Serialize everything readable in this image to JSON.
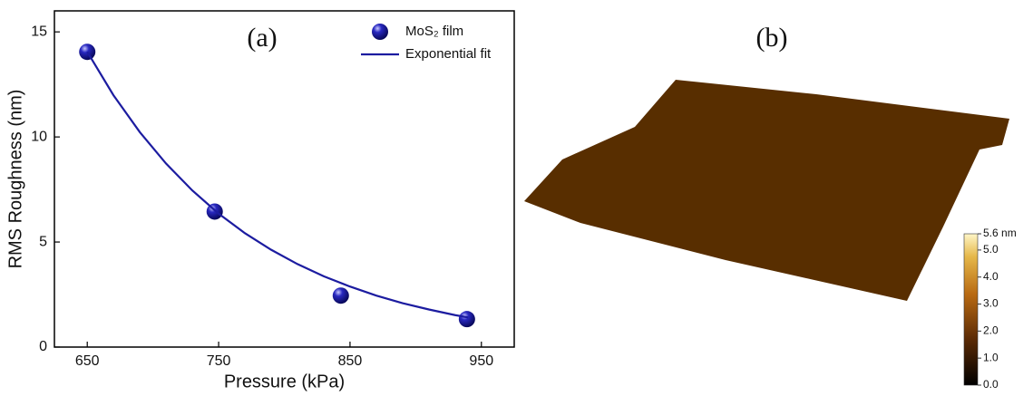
{
  "chart_data": [
    {
      "type": "scatter-line",
      "annotation": "(a)",
      "x_label": "Pressure (kPa)",
      "y_label": "RMS Roughness (nm)",
      "xlim": [
        625,
        975
      ],
      "ylim": [
        0,
        16
      ],
      "xticks": [
        650,
        750,
        850,
        950
      ],
      "yticks": [
        0,
        5,
        10,
        15
      ],
      "legend": "upper right",
      "series": [
        {
          "name": "MoS₂ film",
          "color": "#1c1ca0",
          "mode": "markers",
          "x": [
            650,
            747,
            843,
            939
          ],
          "values": [
            14.05,
            6.45,
            2.45,
            1.33
          ]
        },
        {
          "name": "Exponential fit",
          "color": "#1c1ca0",
          "mode": "line",
          "x": [
            650,
            670,
            690,
            710,
            730,
            750,
            770,
            790,
            810,
            830,
            850,
            870,
            890,
            910,
            930,
            940
          ],
          "values": [
            14.05,
            11.98,
            10.23,
            8.73,
            7.45,
            6.35,
            5.42,
            4.63,
            3.95,
            3.37,
            2.88,
            2.45,
            2.09,
            1.79,
            1.52,
            1.41
          ]
        }
      ]
    },
    {
      "type": "surface",
      "annotation": "(b)",
      "clim": [
        0,
        5.6
      ],
      "cticks": [
        {
          "value": 0,
          "label": "0.0"
        },
        {
          "value": 1,
          "label": "1.0"
        },
        {
          "value": 2,
          "label": "2.0"
        },
        {
          "value": 3,
          "label": "3.0"
        },
        {
          "value": 4,
          "label": "4.0"
        },
        {
          "value": 5,
          "label": "5.0"
        },
        {
          "value": 5.6,
          "label": "5.6 nm"
        }
      ]
    }
  ]
}
